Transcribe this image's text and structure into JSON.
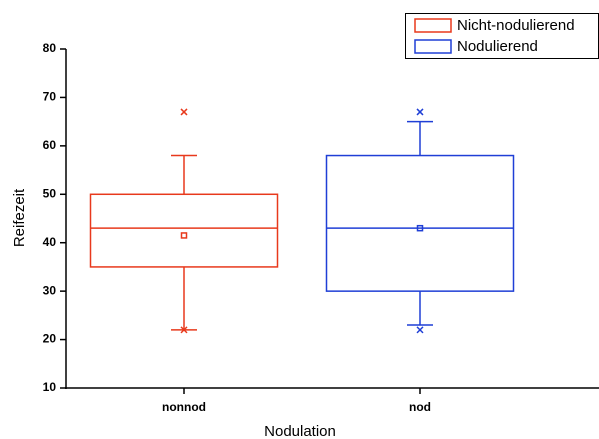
{
  "chart_data": {
    "type": "box",
    "x_label": "Nodulation",
    "y_label": "Reifezeit",
    "categories": [
      "nonnod",
      "nod"
    ],
    "ylim": [
      10,
      80
    ],
    "yticks": [
      10,
      20,
      30,
      40,
      50,
      60,
      70,
      80
    ],
    "series": [
      {
        "name": "Nicht-nodulierend",
        "color": "#e8391c",
        "whisker_low": 22,
        "q1": 35,
        "median": 43,
        "q3": 50,
        "whisker_high": 58,
        "mean": 41.5,
        "outliers": [
          67,
          22
        ]
      },
      {
        "name": "Nodulierend",
        "color": "#1f3fd6",
        "whisker_low": 23,
        "q1": 30,
        "median": 43,
        "q3": 58,
        "whisker_high": 65,
        "mean": 43,
        "outliers": [
          67,
          22
        ]
      }
    ]
  }
}
